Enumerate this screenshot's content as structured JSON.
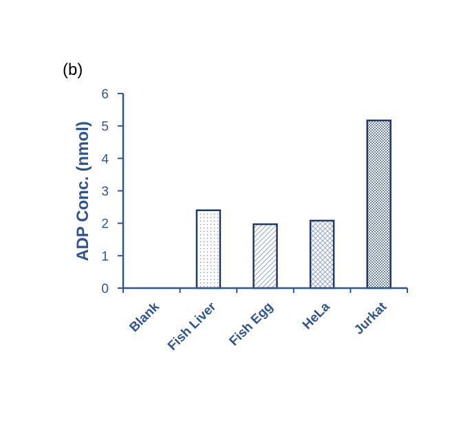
{
  "panel_label": "(b)",
  "colors": {
    "axis": "#2f5496",
    "text": "#2f5496",
    "bar_stroke": "#1f3864",
    "bar_fill_pattern": "#6f86b5"
  },
  "chart_data": {
    "type": "bar",
    "categories": [
      "Blank",
      "Fish Liver",
      "Fish Egg",
      "HeLa",
      "Jurkat"
    ],
    "values": [
      0,
      2.4,
      1.97,
      2.08,
      5.17
    ],
    "patterns": [
      "none",
      "dots",
      "diagonal",
      "crosshatch",
      "checker"
    ],
    "title": "",
    "xlabel": "",
    "ylabel": "ADP Conc. (nmol)",
    "ylim": [
      0,
      6
    ],
    "yticks": [
      "0",
      "1",
      "2",
      "3",
      "4",
      "5",
      "6"
    ],
    "grid": false,
    "legend": "none"
  }
}
